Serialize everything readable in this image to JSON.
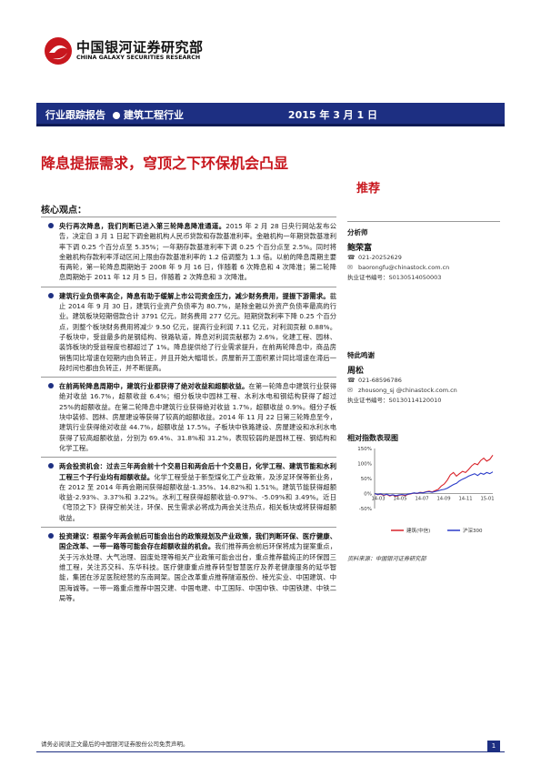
{
  "header": {
    "logo_cn": "中国银河证券研究部",
    "logo_en": "CHINA GALAXY SECURITIES RESEARCH",
    "report_type": "行业跟踪报告",
    "industry": "建筑工程行业",
    "date": "2015 年 3 月 1 日"
  },
  "title": "降息提振需求，穹顶之下环保机会凸显",
  "rating": "推荐",
  "section_label": "核心观点：",
  "paragraphs": [
    {
      "lead": "央行再次降息，我们判断已进入第三轮降息降准通道。",
      "body": "2015 年 2 月 28 日央行网站发布公告，决定自 3 月 1 日起下调金融机构人民币贷款和存款基准利率。金融机构一年期贷款基准利率下调 0.25 个百分点至 5.35%；一年期存款基准利率下调 0.25 个百分点至 2.5%。同时将金融机构存款利率浮动区间上限由存款基准利率的 1.2 倍调整为 1.3 倍。以前的降息周期主要有两轮，第一轮降息周期始于 2008 年 9 月 16 日，伴随着 6 次降息和 4 次降准；第二轮降息周期始于 2011 年 12 月 5 日，伴随着 2 次降息和 3 次降准。"
    },
    {
      "lead": "建筑行业负债率高企，降息有助于缓解上市公司资金压力，减少财务费用，提振下游需求。",
      "body": "截止 2014 年 9 月 30 日，建筑行业资产负债率为 80.7%，是除金融以外资产负债率最高的行业。建筑板块短期借款合计 3791 亿元，财务费用 277 亿元。短期贷款利率下降 0.25 个百分点，则整个板块财务费用将减少 9.50 亿元，提高行业利润 7.11 亿元，对利润贡献 0.88%。子板块中，受益最多的是钢结构、铁路轨道，降息对利润贡献都为 2.6%，化建工程、园林、装饰板块的受益程度也都超过了 1%。降息提供给了行业需求提升，在前两轮降息中，商品房销售同比增速在短期内由负转正，并且开始大幅增长，房屋新开工面积累计同比增速在滞后一段时间也都由负转正，并不断提高。"
    },
    {
      "lead": "在前两轮降息周期中，建筑行业都获得了绝对收益和超额收益。",
      "body": "在第一轮降息中建筑行业获得绝对收益 16.7%，超额收益 6.4%；细分板块中园林工程、水利水电和钢结构获得了超过 25%的超额收益。在第二轮降息中建筑行业获得绝对收益 1.7%，超额收益 0.9%。细分子板块中装修、园林、房屋建设等获得了较高的超额收益。2014 年 11 月 22 日第三轮降息至今，建筑行业获得绝对收益 44.7%，超额收益 17.5%。子板块中铁路建设、房屋建设和水利水电获得了较高超额收益，分别为 69.4%、31.8%和 31.2%，表现较弱的是园林工程、钢结构和化学工程。"
    },
    {
      "lead": "两会投资机会：过去三年两会前十个交易日和两会后十个交易日，化学工程、建筑节能和水利工程三个子行业均有超额收益。",
      "body": "化学工程受益于新型煤化工产业政策，及涉足环保等新业务，在 2012 至 2014 年两会期间获得超额收益-1.35%、14.82%和 1.51%。建筑节能获得超额收益-2.93%、3.37%和 3.22%。水利工程获得超额收益-0.97%、-5.09%和 3.49%。近日《穹顶之下》获得空前关注，环保、民生需求必将成为两会关注热点，相关板块或将获得超额收益。"
    },
    {
      "lead": "投资建议：根据今年两会前后可能会出台的政策规划及产业政策，我们判断环保、医疗健康、国企改革、一带一路等可能会存在超额收益的机会。",
      "body": "我们推荐两会前后环保将成为提案重点，关于污水处理、大气治理、固废处理等相关产业政策可能会出台，重点推荐截纯正的环保园三维工程，关注苏交科、东华科技。医疗健康重点推荐转型智慧医疗及养老健康服务的延华智能，集团在涉足医院经营的东南网架。国企改革重点推荐隧道股份、棱光实业、中国建筑、中国海诚等。一带一路重点推荐中国交建、中国电建、中工国际、中国中铁、中国铁建、中铁二局等。"
    }
  ],
  "analyst": {
    "head": "分析师",
    "name": "鲍荣富",
    "phone": "021-20252629",
    "email": "baorongfu@chinastock.com.cn",
    "cert": "执业证书编号：S0130514050003",
    "assistant_head": "特此鸣谢",
    "assistant_name": "周松",
    "assistant_phone": "021-68596786",
    "assistant_email": "zhousong_sj @chinastock.com.cn",
    "assistant_cert": "执业证书编号：S0130114120010"
  },
  "chart_title": "相对指数表现图",
  "chart_source": "资料来源：中国银河证券研究部",
  "chart_data": {
    "type": "line",
    "x_ticks": [
      "14-03",
      "14-05",
      "14-07",
      "14-09",
      "14-11",
      "15-01"
    ],
    "y_ticks": [
      "-50%",
      "0%",
      "50%",
      "100%",
      "150%"
    ],
    "ylim": [
      -50,
      150
    ],
    "series": [
      {
        "name": "建筑(中信)",
        "color": "#d9232a",
        "values": [
          0,
          -4,
          -2,
          -6,
          -3,
          -8,
          -5,
          -9,
          -6,
          -4,
          -7,
          -3,
          -1,
          2,
          0,
          4,
          3,
          6,
          8,
          5,
          10,
          14,
          25,
          32,
          45,
          62,
          70,
          58,
          66,
          74,
          70,
          80,
          92,
          100,
          96,
          110,
          118,
          108,
          114,
          128
        ]
      },
      {
        "name": "沪深300",
        "color": "#2a3bc9",
        "values": [
          0,
          -3,
          -1,
          -5,
          -2,
          -6,
          -4,
          -7,
          -5,
          -3,
          -5,
          -2,
          0,
          2,
          1,
          3,
          2,
          5,
          6,
          4,
          7,
          9,
          12,
          14,
          18,
          24,
          30,
          34,
          42,
          48,
          52,
          58,
          62,
          66,
          60,
          68,
          64,
          70,
          66,
          72
        ]
      }
    ]
  },
  "footer_text": "请务必阅读正文最后的中国银河证券股份公司免责声明。",
  "page_number": "1",
  "colors": {
    "brand_blue": "#1d2f82",
    "accent_red": "#c8171e"
  }
}
